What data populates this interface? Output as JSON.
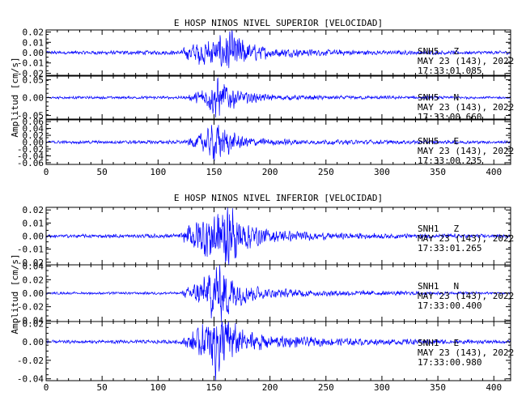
{
  "chart_data": [
    {
      "type": "line",
      "title": "E HOSP NINOS NIVEL SUPERIOR [VELOCIDAD]",
      "ylabel": "Amplitud [cm/s]",
      "xlim": [
        0,
        415
      ],
      "xticks": [
        "0",
        "50",
        "100",
        "150",
        "200",
        "250",
        "300",
        "350",
        "400"
      ],
      "trace_color": "#0000ff",
      "panels": [
        {
          "station": "SNH5",
          "component": "Z",
          "date": "MAY 23 (143), 2022",
          "time": "17:33:01.085",
          "ylim": [
            -0.022,
            0.022
          ],
          "yticks": [
            "0.02",
            "0.01",
            "0.00",
            "-0.01",
            "-0.02"
          ],
          "ytick_values": [
            0.02,
            0.01,
            0.0,
            -0.01,
            -0.02
          ],
          "noise": 0.0012,
          "envelope": [
            [
              0,
              0.0012
            ],
            [
              120,
              0.0015
            ],
            [
              128,
              0.006
            ],
            [
              138,
              0.009
            ],
            [
              150,
              0.01
            ],
            [
              165,
              0.015
            ],
            [
              180,
              0.007
            ],
            [
              200,
              0.0035
            ],
            [
              240,
              0.0022
            ],
            [
              300,
              0.0015
            ],
            [
              415,
              0.0012
            ]
          ]
        },
        {
          "station": "SNH5",
          "component": "N",
          "date": "MAY 23 (143), 2022",
          "time": "17:33:00.660",
          "ylim": [
            -0.06,
            0.06
          ],
          "yticks": [
            "0.05",
            "0.00",
            "-0.05"
          ],
          "ytick_values": [
            0.05,
            0.0,
            -0.05
          ],
          "noise": 0.0025,
          "envelope": [
            [
              0,
              0.0025
            ],
            [
              125,
              0.003
            ],
            [
              135,
              0.012
            ],
            [
              145,
              0.025
            ],
            [
              152,
              0.045
            ],
            [
              160,
              0.03
            ],
            [
              175,
              0.012
            ],
            [
              200,
              0.006
            ],
            [
              250,
              0.004
            ],
            [
              415,
              0.0025
            ]
          ]
        },
        {
          "station": "SNH5",
          "component": "E",
          "date": "MAY 23 (143), 2022",
          "time": "17:33:00.235",
          "ylim": [
            -0.065,
            0.065
          ],
          "yticks": [
            "0.06",
            "0.04",
            "0.02",
            "0.00",
            "-0.02",
            "-0.04",
            "-0.06"
          ],
          "ytick_values": [
            0.06,
            0.04,
            0.02,
            0.0,
            -0.02,
            -0.04,
            -0.06
          ],
          "noise": 0.003,
          "envelope": [
            [
              0,
              0.003
            ],
            [
              125,
              0.004
            ],
            [
              135,
              0.015
            ],
            [
              145,
              0.03
            ],
            [
              152,
              0.045
            ],
            [
              160,
              0.028
            ],
            [
              175,
              0.012
            ],
            [
              200,
              0.007
            ],
            [
              250,
              0.005
            ],
            [
              415,
              0.003
            ]
          ]
        }
      ]
    },
    {
      "type": "line",
      "title": "E HOSP NINOS NIVEL INFERIOR [VELOCIDAD]",
      "ylabel": "Amplitud [cm/s]",
      "xlim": [
        0,
        415
      ],
      "xticks": [
        "0",
        "50",
        "100",
        "150",
        "200",
        "250",
        "300",
        "350",
        "400"
      ],
      "trace_color": "#0000ff",
      "panels": [
        {
          "station": "SNH1",
          "component": "Z",
          "date": "MAY 23 (143), 2022",
          "time": "17:33:01.265",
          "ylim": [
            -0.022,
            0.022
          ],
          "yticks": [
            "0.02",
            "0.01",
            "0.00",
            "-0.01",
            "-0.02"
          ],
          "ytick_values": [
            0.02,
            0.01,
            0.0,
            -0.01,
            -0.02
          ],
          "noise": 0.0009,
          "envelope": [
            [
              0,
              0.0009
            ],
            [
              120,
              0.0012
            ],
            [
              130,
              0.008
            ],
            [
              140,
              0.012
            ],
            [
              150,
              0.016
            ],
            [
              162,
              0.018
            ],
            [
              175,
              0.01
            ],
            [
              195,
              0.004
            ],
            [
              240,
              0.002
            ],
            [
              300,
              0.0014
            ],
            [
              415,
              0.0009
            ]
          ]
        },
        {
          "station": "SNH1",
          "component": "N",
          "date": "MAY 23 (143), 2022",
          "time": "17:33:00.400",
          "ylim": [
            -0.042,
            0.042
          ],
          "yticks": [
            "0.04",
            "0.02",
            "0.00",
            "-0.02",
            "-0.04"
          ],
          "ytick_values": [
            0.04,
            0.02,
            0.0,
            -0.02,
            -0.04
          ],
          "noise": 0.0012,
          "envelope": [
            [
              0,
              0.0012
            ],
            [
              120,
              0.0015
            ],
            [
              135,
              0.012
            ],
            [
              145,
              0.022
            ],
            [
              152,
              0.036
            ],
            [
              162,
              0.026
            ],
            [
              175,
              0.012
            ],
            [
              200,
              0.005
            ],
            [
              250,
              0.003
            ],
            [
              415,
              0.0012
            ]
          ]
        },
        {
          "station": "SNH1",
          "component": "E",
          "date": "MAY 23 (143), 2022",
          "time": "17:33:00.980",
          "ylim": [
            -0.042,
            0.022
          ],
          "yticks": [
            "0.02",
            "0.00",
            "-0.02",
            "-0.04"
          ],
          "ytick_values": [
            0.02,
            0.0,
            -0.02,
            -0.04
          ],
          "noise": 0.0012,
          "envelope": [
            [
              0,
              0.0012
            ],
            [
              120,
              0.0015
            ],
            [
              135,
              0.01
            ],
            [
              145,
              0.018
            ],
            [
              152,
              0.03
            ],
            [
              162,
              0.02
            ],
            [
              175,
              0.01
            ],
            [
              200,
              0.005
            ],
            [
              250,
              0.003
            ],
            [
              415,
              0.0012
            ]
          ]
        }
      ]
    }
  ]
}
